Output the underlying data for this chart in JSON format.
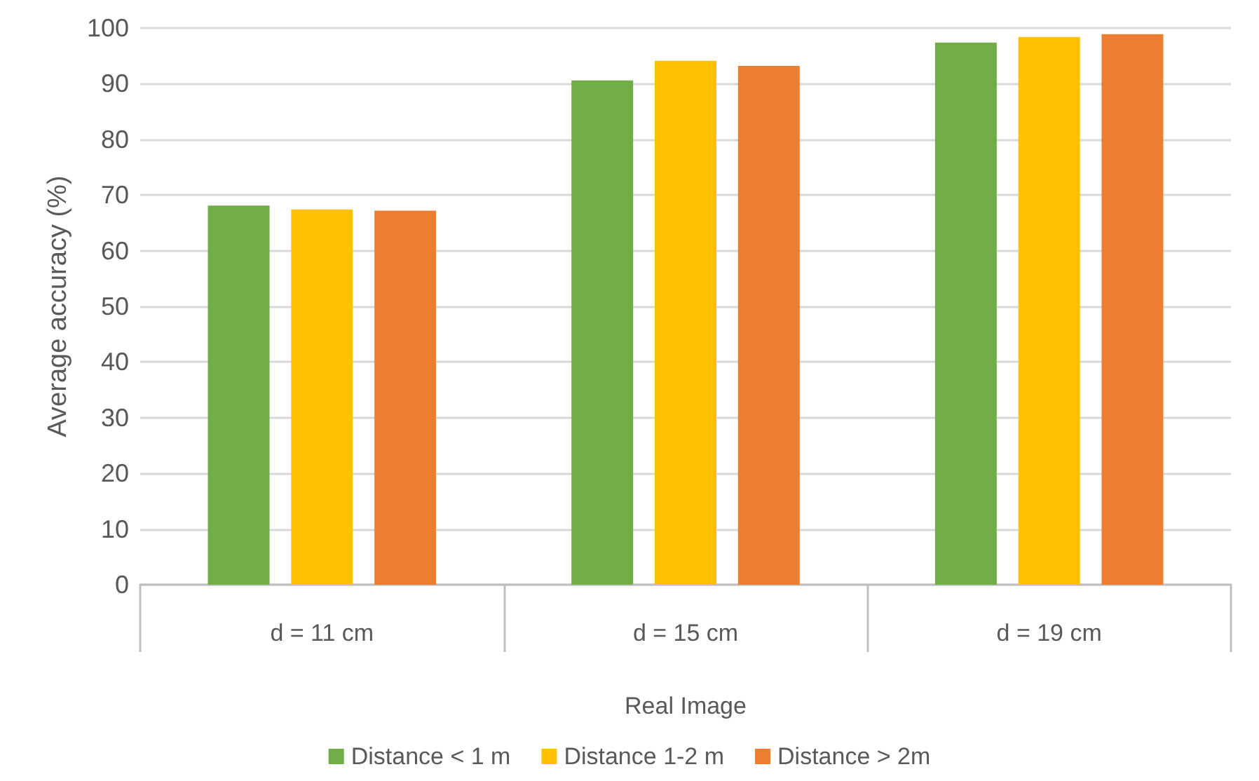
{
  "chart_data": {
    "type": "bar",
    "xlabel": "Real Image",
    "ylabel": "Average accuracy (%)",
    "categories": [
      "d = 11 cm",
      "d = 15 cm",
      "d = 19 cm"
    ],
    "series": [
      {
        "name": "Distance < 1 m",
        "color": "#70ad47",
        "values": [
          68.1,
          90.6,
          97.4
        ]
      },
      {
        "name": "Distance 1-2 m",
        "color": "#ffc000",
        "values": [
          67.4,
          94.1,
          98.4
        ]
      },
      {
        "name": "Distance > 2m",
        "color": "#ed7d31",
        "values": [
          67.2,
          93.2,
          98.9
        ]
      }
    ],
    "ylim": [
      0,
      100
    ],
    "yticks": [
      0,
      10,
      20,
      30,
      40,
      50,
      60,
      70,
      80,
      90,
      100
    ],
    "grid": "y",
    "legend": "bottom"
  }
}
